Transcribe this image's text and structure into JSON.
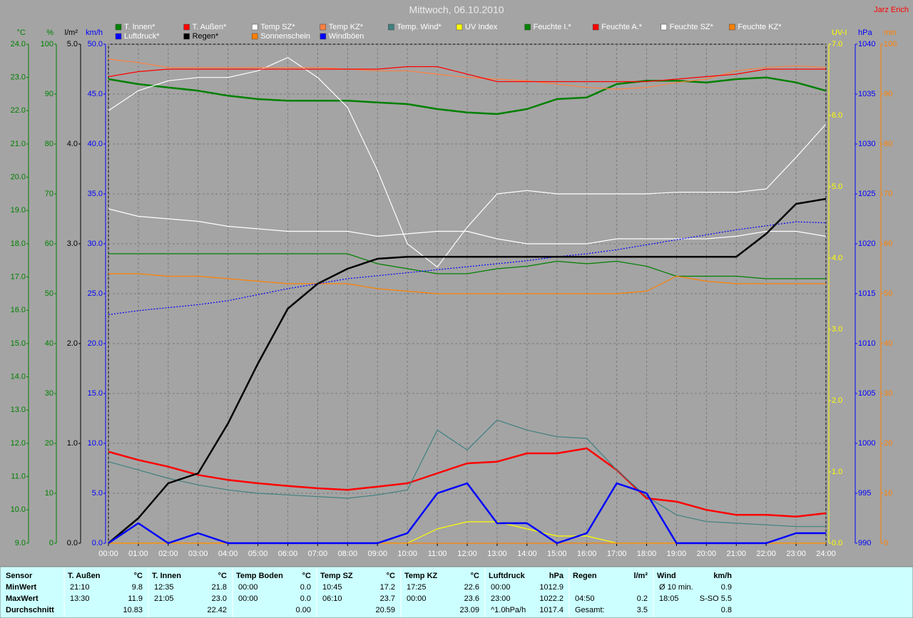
{
  "chart_data": {
    "type": "line",
    "title": "Mittwoch, 06.10.2010",
    "author": "Jarz Erich",
    "x": [
      0,
      1,
      2,
      3,
      4,
      5,
      6,
      7,
      8,
      9,
      10,
      11,
      12,
      13,
      14,
      15,
      16,
      17,
      18,
      19,
      20,
      21,
      22,
      23,
      24
    ],
    "xlim": [
      0,
      24
    ],
    "xticks": [
      {
        "value": 0,
        "label": "00:00"
      },
      {
        "value": 1,
        "label": "01:00"
      },
      {
        "value": 2,
        "label": "02:00"
      },
      {
        "value": 3,
        "label": "03:00"
      },
      {
        "value": 4,
        "label": "04:00"
      },
      {
        "value": 5,
        "label": "05:00"
      },
      {
        "value": 6,
        "label": "06:00"
      },
      {
        "value": 7,
        "label": "07:00"
      },
      {
        "value": 8,
        "label": "08:00"
      },
      {
        "value": 9,
        "label": "09:00"
      },
      {
        "value": 10,
        "label": "10:00"
      },
      {
        "value": 11,
        "label": "11:00"
      },
      {
        "value": 12,
        "label": "12:00"
      },
      {
        "value": 13,
        "label": "13:00"
      },
      {
        "value": 14,
        "label": "14:00"
      },
      {
        "value": 15,
        "label": "15:00"
      },
      {
        "value": 16,
        "label": "16:00"
      },
      {
        "value": 17,
        "label": "17:00"
      },
      {
        "value": 18,
        "label": "18:00"
      },
      {
        "value": 19,
        "label": "19:00"
      },
      {
        "value": 20,
        "label": "20:00"
      },
      {
        "value": 21,
        "label": "21:00"
      },
      {
        "value": 22,
        "label": "22:00"
      },
      {
        "value": 23,
        "label": "23:00"
      },
      {
        "value": 24,
        "label": "24:00"
      }
    ],
    "grid": true,
    "y_axes": [
      {
        "label": "°C",
        "side": "left",
        "color": "#008000",
        "ylim": [
          9,
          24
        ],
        "yticks": [
          {
            "value": 9,
            "label": "9.0"
          },
          {
            "value": 10,
            "label": "10.0"
          },
          {
            "value": 11,
            "label": "11.0"
          },
          {
            "value": 12,
            "label": "12.0"
          },
          {
            "value": 13,
            "label": "13.0"
          },
          {
            "value": 14,
            "label": "14.0"
          },
          {
            "value": 15,
            "label": "15.0"
          },
          {
            "value": 16,
            "label": "16.0"
          },
          {
            "value": 17,
            "label": "17.0"
          },
          {
            "value": 18,
            "label": "18.0"
          },
          {
            "value": 19,
            "label": "19.0"
          },
          {
            "value": 20,
            "label": "20.0"
          },
          {
            "value": 21,
            "label": "21.0"
          },
          {
            "value": 22,
            "label": "22.0"
          },
          {
            "value": 23,
            "label": "23.0"
          },
          {
            "value": 24,
            "label": "24.0"
          }
        ]
      },
      {
        "label": "%",
        "side": "left",
        "color": "#008000",
        "ylim": [
          0,
          100
        ],
        "yticks": [
          0,
          10,
          20,
          30,
          40,
          50,
          60,
          70,
          80,
          90,
          100
        ]
      },
      {
        "label": "l/m²",
        "side": "left",
        "color": "#000000",
        "ylim": [
          0,
          5
        ],
        "yticks": [
          {
            "value": 0,
            "label": "0.0"
          },
          {
            "value": 1,
            "label": "1.0"
          },
          {
            "value": 2,
            "label": "2.0"
          },
          {
            "value": 3,
            "label": "3.0"
          },
          {
            "value": 4,
            "label": "4.0"
          },
          {
            "value": 5,
            "label": "5.0"
          }
        ]
      },
      {
        "label": "km/h",
        "side": "left",
        "color": "#0000ff",
        "ylim": [
          0,
          50
        ],
        "yticks": [
          {
            "value": 0,
            "label": "0.0"
          },
          {
            "value": 5,
            "label": "5.0"
          },
          {
            "value": 10,
            "label": "10.0"
          },
          {
            "value": 15,
            "label": "15.0"
          },
          {
            "value": 20,
            "label": "20.0"
          },
          {
            "value": 25,
            "label": "25.0"
          },
          {
            "value": 30,
            "label": "30.0"
          },
          {
            "value": 35,
            "label": "35.0"
          },
          {
            "value": 40,
            "label": "40.0"
          },
          {
            "value": 45,
            "label": "45.0"
          },
          {
            "value": 50,
            "label": "50.0"
          }
        ]
      },
      {
        "label": "UV-I",
        "side": "right",
        "color": "#ffff00",
        "ylim": [
          0,
          7
        ],
        "yticks": [
          {
            "value": 0,
            "label": "0.0"
          },
          {
            "value": 1,
            "label": "1.0"
          },
          {
            "value": 2,
            "label": "2.0"
          },
          {
            "value": 3,
            "label": "3.0"
          },
          {
            "value": 4,
            "label": "4.0"
          },
          {
            "value": 5,
            "label": "5.0"
          },
          {
            "value": 6,
            "label": "6.0"
          },
          {
            "value": 7,
            "label": "7.0"
          }
        ]
      },
      {
        "label": "hPa",
        "side": "right",
        "color": "#0000ff",
        "ylim": [
          990,
          1040
        ],
        "yticks": [
          990,
          995,
          1000,
          1005,
          1010,
          1015,
          1020,
          1025,
          1030,
          1035,
          1040
        ]
      },
      {
        "label": "min",
        "side": "right",
        "color": "#ff8000",
        "ylim": [
          0,
          100
        ],
        "yticks": [
          0,
          10,
          20,
          30,
          40,
          50,
          60,
          70,
          80,
          90,
          100
        ]
      }
    ],
    "series": [
      {
        "name": "T. Innen*",
        "color": "#008000",
        "axis": "°C",
        "bold": true,
        "values": [
          22.95,
          22.8,
          22.7,
          22.6,
          22.45,
          22.35,
          22.3,
          22.3,
          22.3,
          22.25,
          22.2,
          22.05,
          21.95,
          21.9,
          22.05,
          22.35,
          22.4,
          22.8,
          22.9,
          22.9,
          22.85,
          22.95,
          23.0,
          22.85,
          22.6
        ]
      },
      {
        "name": "T. Außen*",
        "color": "#ff0000",
        "axis": "°C",
        "bold": true,
        "values": [
          11.75,
          11.5,
          11.3,
          11.05,
          10.9,
          10.8,
          10.72,
          10.65,
          10.6,
          10.7,
          10.8,
          11.1,
          11.4,
          11.45,
          11.7,
          11.7,
          11.85,
          11.2,
          10.35,
          10.25,
          10.0,
          9.85,
          9.85,
          9.8,
          9.9
        ]
      },
      {
        "name": "Temp SZ*",
        "color": "#ffffff",
        "axis": "°C",
        "values": [
          22.0,
          22.6,
          22.9,
          23.0,
          23.0,
          23.2,
          23.6,
          23.0,
          22.1,
          20.2,
          18.0,
          17.3,
          18.5,
          19.5,
          19.6,
          19.5,
          19.5,
          19.5,
          19.5,
          19.55,
          19.55,
          19.55,
          19.65,
          20.6,
          21.6
        ]
      },
      {
        "name": "Temp KZ*",
        "color": "#ff8040",
        "axis": "°C",
        "values": [
          23.55,
          23.45,
          23.3,
          23.3,
          23.3,
          23.3,
          23.3,
          23.3,
          23.25,
          23.2,
          23.2,
          23.1,
          23.0,
          22.95,
          22.9,
          22.8,
          22.7,
          22.65,
          22.7,
          22.85,
          22.95,
          23.2,
          23.3,
          23.35,
          23.3
        ]
      },
      {
        "name": "Temp. Wind*",
        "color": "#408080",
        "axis": "°C",
        "values": [
          11.45,
          11.2,
          10.95,
          10.75,
          10.6,
          10.5,
          10.45,
          10.4,
          10.35,
          10.45,
          10.6,
          12.4,
          11.8,
          12.7,
          12.4,
          12.2,
          12.15,
          11.2,
          10.4,
          9.85,
          9.65,
          9.6,
          9.55,
          9.5,
          9.5
        ]
      },
      {
        "name": "UV Index",
        "color": "#ffff00",
        "axis": "UV-I",
        "values": [
          0,
          0,
          0,
          0,
          0,
          0,
          0,
          0,
          0,
          0,
          0,
          0.2,
          0.3,
          0.3,
          0.2,
          0.1,
          0.1,
          0,
          0,
          0,
          0,
          0,
          0,
          0,
          0
        ]
      },
      {
        "name": "Feuchte I.*",
        "color": "#008000",
        "axis": "%",
        "values": [
          58,
          58,
          58,
          58,
          58,
          58,
          58,
          58,
          58,
          56,
          55,
          54,
          54,
          55,
          55.5,
          56.5,
          56,
          56.5,
          55.5,
          53.5,
          53.5,
          53.5,
          53,
          53,
          53
        ]
      },
      {
        "name": "Feuchte A.*",
        "color": "#ff0000",
        "axis": "%",
        "values": [
          93.5,
          94.5,
          95,
          95,
          95,
          95,
          95,
          95,
          95,
          95,
          95.5,
          95.5,
          94,
          92.5,
          92.5,
          92.5,
          92.5,
          92.5,
          92.5,
          93,
          93.5,
          94,
          95,
          95,
          95
        ]
      },
      {
        "name": "Feuchte SZ*",
        "color": "#ffffff",
        "axis": "%",
        "values": [
          67,
          65.5,
          65,
          64.5,
          63.5,
          63,
          62.5,
          62.5,
          62.5,
          61.5,
          62,
          62.5,
          62.5,
          61,
          60,
          60,
          60,
          61,
          61,
          61,
          61,
          61.5,
          62.5,
          62.5,
          61.5
        ]
      },
      {
        "name": "Feuchte KZ*",
        "color": "#ff8000",
        "axis": "%",
        "values": [
          54,
          54,
          53.5,
          53.5,
          53,
          52.5,
          52,
          52,
          52,
          51,
          50.5,
          50,
          50,
          50,
          50,
          50,
          50,
          50,
          50.5,
          53.5,
          52.5,
          52,
          52,
          52,
          52
        ]
      },
      {
        "name": "Luftdruck*",
        "color": "#0000ff",
        "axis": "hPa",
        "line_style": "dotted",
        "values": [
          1012.9,
          1013.3,
          1013.6,
          1013.9,
          1014.3,
          1014.9,
          1015.5,
          1016.0,
          1016.5,
          1016.8,
          1017.1,
          1017.4,
          1017.7,
          1018.0,
          1018.3,
          1018.7,
          1019.0,
          1019.4,
          1019.9,
          1020.4,
          1020.9,
          1021.4,
          1021.8,
          1022.2,
          1022.1
        ]
      },
      {
        "name": "Regen*",
        "color": "#000000",
        "axis": "l/m²",
        "bold": true,
        "values": [
          0,
          0.25,
          0.6,
          0.7,
          1.2,
          1.8,
          2.35,
          2.6,
          2.75,
          2.85,
          2.87,
          2.87,
          2.87,
          2.87,
          2.87,
          2.87,
          2.87,
          2.87,
          2.87,
          2.87,
          2.87,
          2.87,
          3.1,
          3.4,
          3.45
        ]
      },
      {
        "name": "Sonnenschein",
        "color": "#ff8000",
        "axis": "min",
        "values": [
          0,
          0,
          0,
          0,
          0,
          0,
          0,
          0,
          0,
          0,
          0,
          0,
          0,
          0,
          0,
          0,
          0,
          0,
          0,
          0,
          0,
          0,
          0,
          0,
          0
        ]
      },
      {
        "name": "Windböen",
        "color": "#0000ff",
        "axis": "km/h",
        "bold": true,
        "values": [
          0,
          2,
          0,
          1,
          0,
          0,
          0,
          0,
          0,
          0,
          1,
          5,
          6,
          2,
          2,
          0,
          1,
          6,
          5,
          0,
          0,
          0,
          0,
          1,
          1
        ]
      }
    ]
  },
  "summary": {
    "sensor": "Sensor",
    "columns": [
      {
        "name": "T. Außen",
        "unit": "°C"
      },
      {
        "name": "T. Innen",
        "unit": "°C"
      },
      {
        "name": "Temp Boden",
        "unit": "°C"
      },
      {
        "name": "Temp SZ",
        "unit": "°C"
      },
      {
        "name": "Temp KZ",
        "unit": "°C"
      },
      {
        "name": "Luftdruck",
        "unit": "hPa"
      },
      {
        "name": "Regen",
        "unit": "l/m²"
      },
      {
        "name": "Wind",
        "unit": "km/h"
      }
    ],
    "rows": [
      {
        "label": "MinWert",
        "cells": [
          {
            "time": "21:10",
            "value": "9.8"
          },
          {
            "time": "12:35",
            "value": "21.8"
          },
          {
            "time": "00:00",
            "value": "0.0"
          },
          {
            "time": "10:45",
            "value": "17.2"
          },
          {
            "time": "17:25",
            "value": "22.6"
          },
          {
            "time": "00:00",
            "value": "1012.9"
          },
          {},
          {
            "time": "Ø 10 min.",
            "value": "0.9"
          }
        ]
      },
      {
        "label": "MaxWert",
        "cells": [
          {
            "time": "13:30",
            "value": "11.9"
          },
          {
            "time": "21:05",
            "value": "23.0"
          },
          {
            "time": "00:00",
            "value": "0.0"
          },
          {
            "time": "06:10",
            "value": "23.7"
          },
          {
            "time": "00:00",
            "value": "23.6"
          },
          {
            "time": "23:00",
            "value": "1022.2"
          },
          {
            "time": "04:50",
            "value": "0.2"
          },
          {
            "time": "18:05",
            "value": "S-SO 5.5"
          }
        ]
      },
      {
        "label": "Durchschnitt",
        "cells": [
          {
            "value": "10.83"
          },
          {
            "value": "22.42"
          },
          {
            "value": "0.00"
          },
          {
            "value": "20.59"
          },
          {
            "value": "23.09"
          },
          {
            "time": "^1.0hPa/h",
            "value": "1017.4"
          },
          {
            "time": "Gesamt:",
            "value": "3.5"
          },
          {
            "value": "0.8"
          }
        ]
      }
    ]
  }
}
